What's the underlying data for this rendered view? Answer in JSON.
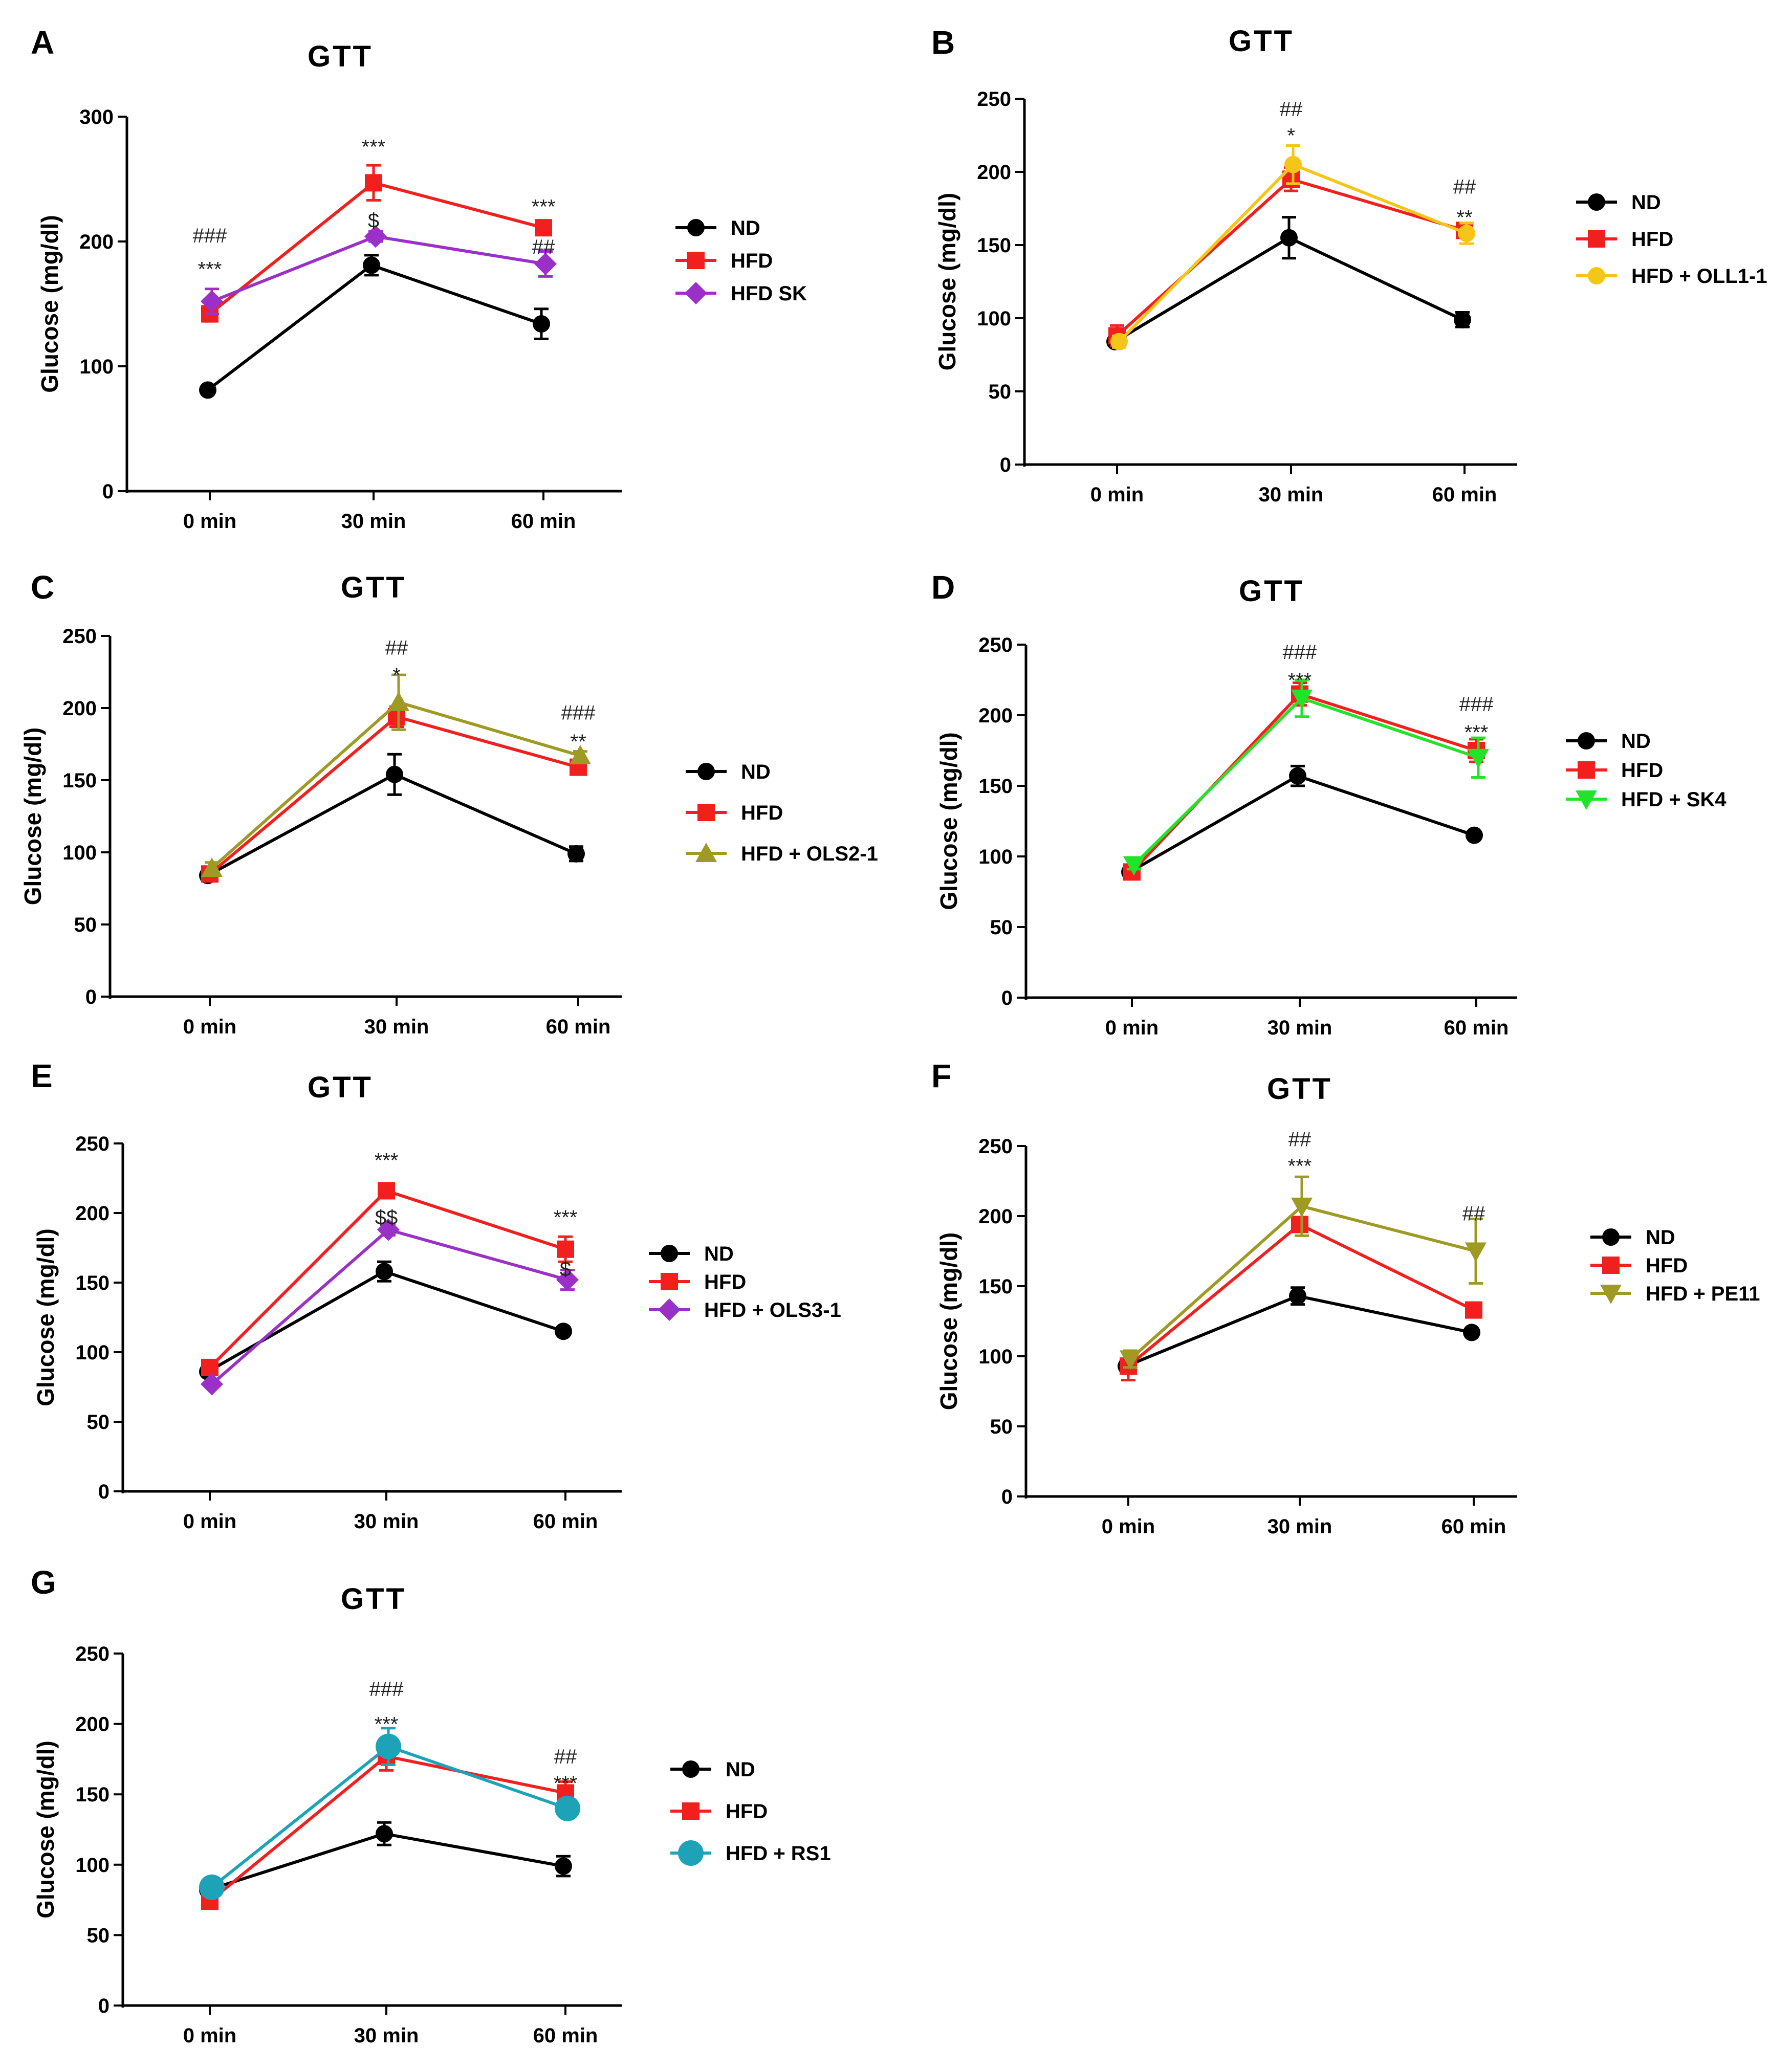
{
  "figure": {
    "image_size": "3502x4048"
  },
  "chart_data": [
    {
      "panel": "A",
      "type": "line",
      "title": "GTT",
      "ylabel": "Glucose (mg/dl)",
      "xlabel": "",
      "categories": [
        "0 min",
        "30 min",
        "60 min"
      ],
      "ylim": [
        0,
        300
      ],
      "yticks": [
        0,
        100,
        200,
        300
      ],
      "series": [
        {
          "name": "ND",
          "marker": "circle",
          "color": "#000000",
          "values": [
            81,
            181,
            134
          ],
          "errors": [
            3,
            8,
            12
          ]
        },
        {
          "name": "HFD",
          "marker": "square",
          "color": "#f21f1f",
          "values": [
            142,
            247,
            211
          ],
          "errors": [
            6,
            14,
            5
          ]
        },
        {
          "name": "HFD SK",
          "marker": "diamond",
          "color": "#9b30c8",
          "values": [
            152,
            204,
            182
          ],
          "errors": [
            10,
            4,
            10
          ]
        }
      ],
      "annotations": [
        {
          "cat": 0,
          "value": 205,
          "text": "###"
        },
        {
          "cat": 0,
          "value": 178,
          "text": "***"
        },
        {
          "cat": 1,
          "value": 276,
          "text": "***"
        },
        {
          "cat": 1,
          "value": 217,
          "text": "$"
        },
        {
          "cat": 2,
          "value": 228,
          "text": "***"
        },
        {
          "cat": 2,
          "value": 196,
          "text": "##"
        }
      ]
    },
    {
      "panel": "B",
      "type": "line",
      "title": "GTT",
      "ylabel": "Glucose (mg/dl)",
      "xlabel": "",
      "categories": [
        "0 min",
        "30 min",
        "60 min"
      ],
      "ylim": [
        0,
        250
      ],
      "yticks": [
        0,
        50,
        100,
        150,
        200,
        250
      ],
      "series": [
        {
          "name": "ND",
          "marker": "circle",
          "color": "#000000",
          "values": [
            84,
            155,
            99
          ],
          "errors": [
            3,
            14,
            5
          ]
        },
        {
          "name": "HFD",
          "marker": "square",
          "color": "#f21f1f",
          "values": [
            88,
            195,
            160
          ],
          "errors": [
            7,
            8,
            5
          ]
        },
        {
          "name": "HFD + OLL1-1",
          "marker": "circle",
          "color": "#f5c518",
          "values": [
            84,
            205,
            158
          ],
          "errors": [
            4,
            13,
            7
          ]
        }
      ],
      "annotations": [
        {
          "cat": 1,
          "value": 243,
          "text": "##"
        },
        {
          "cat": 1,
          "value": 225,
          "text": "*"
        },
        {
          "cat": 2,
          "value": 190,
          "text": "##"
        },
        {
          "cat": 2,
          "value": 169,
          "text": "**"
        }
      ]
    },
    {
      "panel": "C",
      "type": "line",
      "title": "GTT",
      "ylabel": "Glucose (mg/dl)",
      "xlabel": "",
      "categories": [
        "0 min",
        "30 min",
        "60 min"
      ],
      "ylim": [
        0,
        250
      ],
      "yticks": [
        0,
        50,
        100,
        150,
        200,
        250
      ],
      "series": [
        {
          "name": "ND",
          "marker": "circle",
          "color": "#000000",
          "values": [
            84,
            154,
            99
          ],
          "errors": [
            3,
            14,
            5
          ]
        },
        {
          "name": "HFD",
          "marker": "square",
          "color": "#f21f1f",
          "values": [
            85,
            194,
            159
          ],
          "errors": [
            5,
            7,
            3
          ]
        },
        {
          "name": "HFD + OLS2-1",
          "marker": "triangle",
          "color": "#9e9a24",
          "values": [
            89,
            204,
            167
          ],
          "errors": [
            4,
            19,
            3
          ]
        }
      ],
      "annotations": [
        {
          "cat": 1,
          "value": 242,
          "text": "##"
        },
        {
          "cat": 1,
          "value": 223,
          "text": "*"
        },
        {
          "cat": 2,
          "value": 197,
          "text": "###"
        },
        {
          "cat": 2,
          "value": 177,
          "text": "**"
        }
      ]
    },
    {
      "panel": "D",
      "type": "line",
      "title": "GTT",
      "ylabel": "Glucose (mg/dl)",
      "xlabel": "",
      "categories": [
        "0 min",
        "30 min",
        "60 min"
      ],
      "ylim": [
        0,
        250
      ],
      "yticks": [
        0,
        50,
        100,
        150,
        200,
        250
      ],
      "series": [
        {
          "name": "ND",
          "marker": "circle",
          "color": "#000000",
          "values": [
            89,
            157,
            115
          ],
          "errors": [
            3,
            7,
            2
          ]
        },
        {
          "name": "HFD",
          "marker": "square",
          "color": "#f21f1f",
          "values": [
            89,
            215,
            175
          ],
          "errors": [
            3,
            8,
            8
          ]
        },
        {
          "name": "HFD + SK4",
          "marker": "triangle-down",
          "color": "#22e32a",
          "values": [
            94,
            212,
            170
          ],
          "errors": [
            3,
            13,
            14
          ]
        }
      ],
      "annotations": [
        {
          "cat": 1,
          "value": 245,
          "text": "###"
        },
        {
          "cat": 1,
          "value": 225,
          "text": "***"
        },
        {
          "cat": 2,
          "value": 208,
          "text": "###"
        },
        {
          "cat": 2,
          "value": 188,
          "text": "***"
        }
      ]
    },
    {
      "panel": "E",
      "type": "line",
      "title": "GTT",
      "ylabel": "Glucose (mg/dl)",
      "xlabel": "",
      "categories": [
        "0 min",
        "30 min",
        "60 min"
      ],
      "ylim": [
        0,
        250
      ],
      "yticks": [
        0,
        50,
        100,
        150,
        200,
        250
      ],
      "series": [
        {
          "name": "ND",
          "marker": "circle",
          "color": "#000000",
          "values": [
            86,
            158,
            115
          ],
          "errors": [
            3,
            7,
            2
          ]
        },
        {
          "name": "HFD",
          "marker": "square",
          "color": "#f21f1f",
          "values": [
            89,
            216,
            174
          ],
          "errors": [
            3,
            3,
            9
          ]
        },
        {
          "name": "HFD + OLS3-1",
          "marker": "diamond",
          "color": "#9b30c8",
          "values": [
            77,
            188,
            152
          ],
          "errors": [
            2,
            4,
            7
          ]
        }
      ],
      "annotations": [
        {
          "cat": 1,
          "value": 238,
          "text": "***"
        },
        {
          "cat": 1,
          "value": 197,
          "text": "$$"
        },
        {
          "cat": 2,
          "value": 197,
          "text": "***"
        },
        {
          "cat": 2,
          "value": 160,
          "text": "$"
        }
      ]
    },
    {
      "panel": "F",
      "type": "line",
      "title": "GTT",
      "ylabel": "Glucose (mg/dl)",
      "xlabel": "",
      "categories": [
        "0 min",
        "30 min",
        "60 min"
      ],
      "ylim": [
        0,
        250
      ],
      "yticks": [
        0,
        50,
        100,
        150,
        200,
        250
      ],
      "series": [
        {
          "name": "ND",
          "marker": "circle",
          "color": "#000000",
          "values": [
            93,
            143,
            117
          ],
          "errors": [
            3,
            6,
            2
          ]
        },
        {
          "name": "HFD",
          "marker": "square",
          "color": "#f21f1f",
          "values": [
            93,
            194,
            133
          ],
          "errors": [
            10,
            5,
            2
          ]
        },
        {
          "name": "HFD + PE11",
          "marker": "triangle-down",
          "color": "#9e9a24",
          "values": [
            98,
            207,
            175
          ],
          "errors": [
            6,
            21,
            23
          ]
        }
      ],
      "annotations": [
        {
          "cat": 1,
          "value": 255,
          "text": "##"
        },
        {
          "cat": 1,
          "value": 236,
          "text": "***"
        },
        {
          "cat": 2,
          "value": 202,
          "text": "##"
        }
      ]
    },
    {
      "panel": "G",
      "type": "line",
      "title": "GTT",
      "ylabel": "Glucose (mg/dl)",
      "xlabel": "",
      "categories": [
        "0 min",
        "30 min",
        "60 min"
      ],
      "ylim": [
        0,
        250
      ],
      "yticks": [
        0,
        50,
        100,
        150,
        200,
        250
      ],
      "series": [
        {
          "name": "ND",
          "marker": "circle",
          "color": "#000000",
          "values": [
            82,
            122,
            99
          ],
          "errors": [
            3,
            8,
            7
          ]
        },
        {
          "name": "HFD",
          "marker": "square",
          "color": "#f21f1f",
          "values": [
            74,
            177,
            151
          ],
          "errors": [
            4,
            10,
            8
          ]
        },
        {
          "name": "HFD + RS1",
          "marker": "circle-large",
          "color": "#1da2b8",
          "values": [
            84,
            184,
            140
          ],
          "errors": [
            2,
            13,
            6
          ]
        }
      ],
      "annotations": [
        {
          "cat": 1,
          "value": 225,
          "text": "###"
        },
        {
          "cat": 1,
          "value": 200,
          "text": "***"
        },
        {
          "cat": 2,
          "value": 177,
          "text": "##"
        },
        {
          "cat": 2,
          "value": 158,
          "text": "***"
        }
      ]
    }
  ]
}
